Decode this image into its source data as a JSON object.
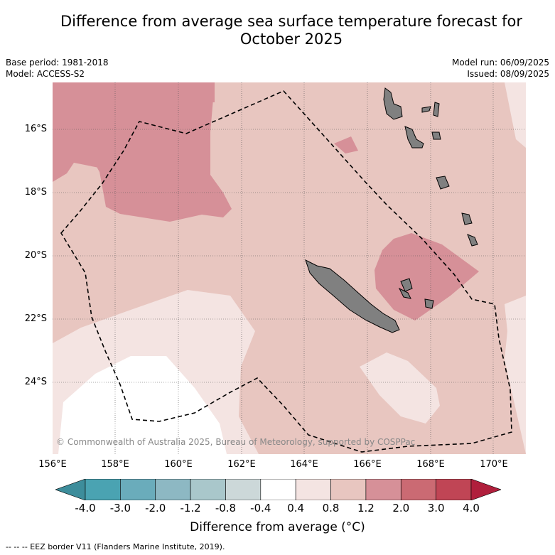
{
  "title_line1": "Difference from average sea surface temperature forecast for",
  "title_line2": "October 2025",
  "meta_left": {
    "base_period": "Base period: 1981-2018",
    "model": "Model: ACCESS-S2"
  },
  "meta_right": {
    "model_run": "Model run: 06/09/2025",
    "issued": "Issued: 08/09/2025"
  },
  "map": {
    "lat_labels": [
      "16°S",
      "18°S",
      "20°S",
      "22°S",
      "24°S"
    ],
    "lon_labels": [
      "156°E",
      "158°E",
      "160°E",
      "162°E",
      "164°E",
      "166°E",
      "168°E",
      "170°E"
    ],
    "copyright": "© Commonwealth of Australia 2025, Bureau of Meteorology, supported by COSPPac",
    "colors": {
      "land": "#808080",
      "eez_line": "#000000"
    }
  },
  "colorbar": {
    "title": "Difference from average (°C)",
    "ticks": [
      "-4.0",
      "-3.0",
      "-2.0",
      "-1.2",
      "-0.8",
      "-0.4",
      "0.4",
      "0.8",
      "1.2",
      "2.0",
      "3.0",
      "4.0"
    ],
    "colors": [
      "#3d8d9b",
      "#4aa3b2",
      "#6aacbb",
      "#8db8c3",
      "#a9c7cb",
      "#ccd8d9",
      "#ffffff",
      "#f4e4e2",
      "#e8c6c0",
      "#d69098",
      "#cb6a73",
      "#c04555",
      "#b01f3c"
    ]
  },
  "footnote": "-- -- -- EEZ border V11 (Flanders Marine Institute, 2019)."
}
